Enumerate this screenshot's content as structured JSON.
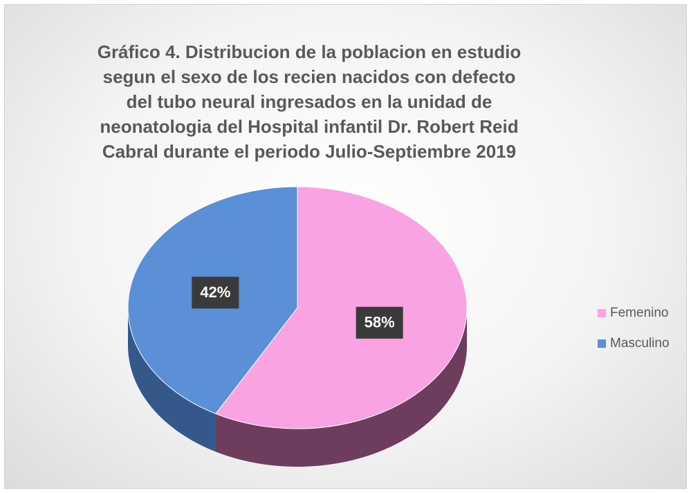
{
  "chart_data": {
    "type": "pie",
    "title": "Gráfico 4. Distribucion de la poblacion en estudio segun el sexo de los recien nacidos con defecto del tubo neural ingresados en la unidad de neonatologia del Hospital infantil Dr. Robert Reid Cabral durante el periodo Julio-Septiembre 2019",
    "categories": [
      "Femenino",
      "Masculino"
    ],
    "values": [
      58,
      42
    ],
    "value_labels": [
      "58%",
      "42%"
    ],
    "colors": [
      "#f9a3e3",
      "#5b8fd6"
    ],
    "side_colors": [
      "#6e3d5e",
      "#34588a"
    ],
    "legend": "right"
  }
}
